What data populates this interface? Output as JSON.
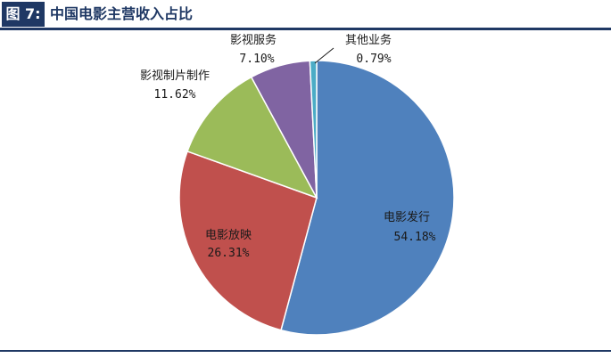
{
  "figure": {
    "label": "图 7:",
    "title": "中国电影主营收入占比"
  },
  "chart_data": {
    "type": "pie",
    "title": "",
    "slices": [
      {
        "name": "电影发行",
        "value": 54.18,
        "display": "54.18%",
        "color": "#4f81bd"
      },
      {
        "name": "电影放映",
        "value": 26.31,
        "display": "26.31%",
        "color": "#c0504d"
      },
      {
        "name": "影视制片制作",
        "value": 11.62,
        "display": "11.62%",
        "color": "#9bbb59"
      },
      {
        "name": "影视服务",
        "value": 7.1,
        "display": "7.10%",
        "color": "#8064a2"
      },
      {
        "name": "其他业务",
        "value": 0.79,
        "display": "0.79%",
        "color": "#4bacc6"
      }
    ],
    "start_angle": "12 o'clock",
    "direction": "clockwise",
    "legend": "none"
  }
}
